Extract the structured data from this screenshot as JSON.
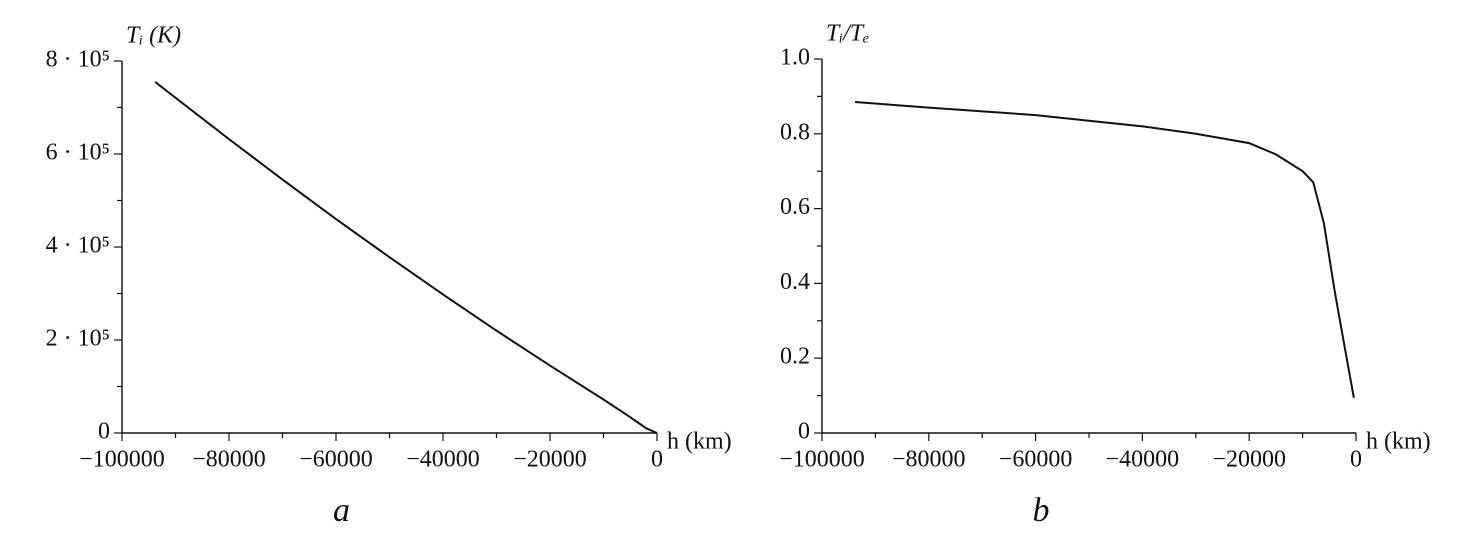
{
  "chart_data": [
    {
      "type": "line",
      "caption": "a",
      "ylabel": "Tᵢ (K)",
      "xlabel": "h (km)",
      "color": "#111111",
      "xlim": [
        -100000,
        0
      ],
      "ylim": [
        0,
        800000
      ],
      "xticks": [
        {
          "value": -100000,
          "label": "−100000"
        },
        {
          "value": -80000,
          "label": "−80000"
        },
        {
          "value": -60000,
          "label": "−60000"
        },
        {
          "value": -40000,
          "label": "−40000"
        },
        {
          "value": -20000,
          "label": "−20000"
        },
        0
      ],
      "xminorticks": [
        -90000,
        -70000,
        -50000,
        -30000,
        -10000
      ],
      "yticks": [
        0,
        {
          "value": 200000,
          "label": "2 · 10⁵"
        },
        {
          "value": 400000,
          "label": "4 · 10⁵"
        },
        {
          "value": 600000,
          "label": "6 · 10⁵"
        },
        {
          "value": 800000,
          "label": "8 · 10⁵"
        }
      ],
      "yminorticks": [
        100000,
        300000,
        500000,
        700000
      ],
      "x": [
        -93800,
        -90000,
        -80000,
        -70000,
        -60000,
        -50000,
        -40000,
        -30000,
        -20000,
        -10000,
        -5000,
        -2000,
        0
      ],
      "values": [
        755000,
        721000,
        632000,
        545000,
        460000,
        378000,
        298000,
        220000,
        145000,
        72000,
        34000,
        10000,
        0
      ]
    },
    {
      "type": "line",
      "caption": "b",
      "ylabel": "Tᵢ/Tₑ",
      "xlabel": "h (km)",
      "color": "#111111",
      "xlim": [
        -100000,
        0
      ],
      "ylim": [
        0,
        1
      ],
      "xticks": [
        {
          "value": -100000,
          "label": "−100000"
        },
        {
          "value": -80000,
          "label": "−80000"
        },
        {
          "value": -60000,
          "label": "−60000"
        },
        {
          "value": -40000,
          "label": "−40000"
        },
        {
          "value": -20000,
          "label": "−20000"
        },
        0
      ],
      "xminorticks": [
        -90000,
        -70000,
        -50000,
        -30000,
        -10000
      ],
      "yticks": [
        0,
        0.2,
        0.4,
        0.6,
        0.8,
        {
          "value": 1,
          "label": "1.0"
        }
      ],
      "yminorticks": [
        0.1,
        0.3,
        0.5,
        0.7,
        0.9
      ],
      "x": [
        -93800,
        -80000,
        -60000,
        -40000,
        -30000,
        -20000,
        -15000,
        -10000,
        -8000,
        -6000,
        -4000,
        -2000,
        -400
      ],
      "values": [
        0.885,
        0.87,
        0.85,
        0.82,
        0.8,
        0.775,
        0.745,
        0.7,
        0.67,
        0.56,
        0.38,
        0.22,
        0.094
      ]
    }
  ]
}
